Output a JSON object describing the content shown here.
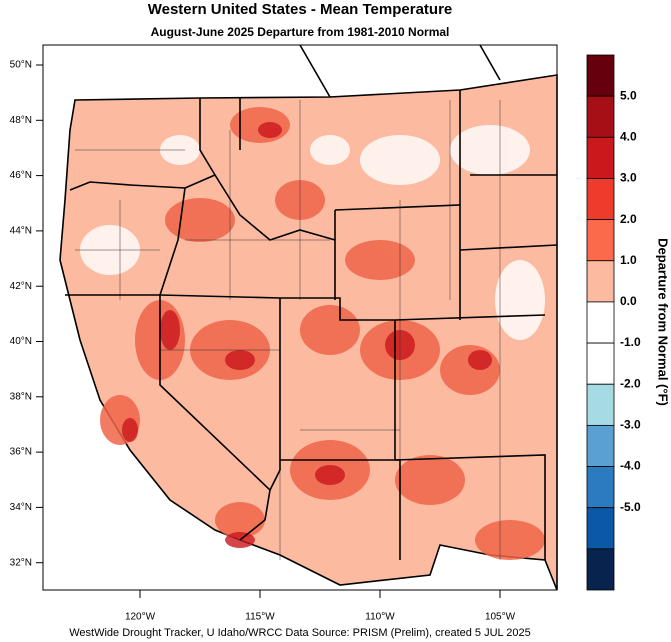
{
  "header": {
    "title": "Western United States - Mean Temperature",
    "subtitle": "August-June 2025  Departure from 1981-2010 Normal"
  },
  "latitude_labels": [
    "50°N",
    "48°N",
    "46°N",
    "44°N",
    "42°N",
    "40°N",
    "38°N",
    "36°N",
    "34°N",
    "32°N"
  ],
  "longitude_labels": [
    "120°W",
    "115°W",
    "110°W",
    "105°W"
  ],
  "colorbar": {
    "title": "Departure from Normal (°F)",
    "labels": [
      "5.0",
      "4.0",
      "3.0",
      "2.0",
      "1.0",
      "0.0",
      "-1.0",
      "-2.0",
      "-3.0",
      "-4.0",
      "-5.0"
    ],
    "colors": [
      "#67000d",
      "#a50f15",
      "#cb181d",
      "#ef3b2c",
      "#fb6a4a",
      "#fcbba1",
      "#ffffff",
      "#ffffff",
      "#a6dbe3",
      "#5aa0d2",
      "#2c7bc0",
      "#0b59a6",
      "#08244e"
    ]
  },
  "footer": "WestWide Drought Tracker, U Idaho/WRCC Data Source: PRISM (Prelim), created  5 JUL 2025"
}
